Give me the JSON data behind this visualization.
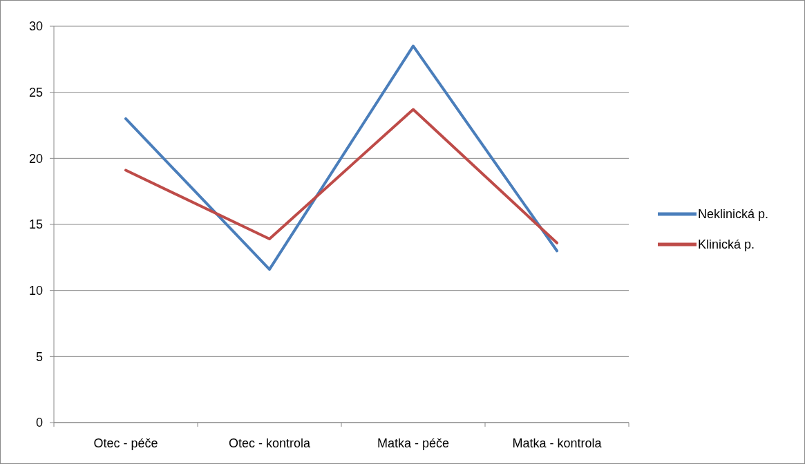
{
  "chart_data": {
    "type": "line",
    "categories": [
      "Otec - péče",
      "Otec - kontrola",
      "Matka - péče",
      "Matka - kontrola"
    ],
    "series": [
      {
        "name": "Neklinická p.",
        "color": "#4a7ebb",
        "values": [
          23,
          11.6,
          28.5,
          13
        ]
      },
      {
        "name": "Klinická p.",
        "color": "#be4b48",
        "values": [
          19.1,
          13.9,
          23.7,
          13.6
        ]
      }
    ],
    "ylim": [
      0,
      30
    ],
    "yticks": [
      0,
      5,
      10,
      15,
      20,
      25,
      30
    ],
    "grid": "y",
    "legend": "right",
    "marker": "none",
    "line_style": "solid"
  }
}
